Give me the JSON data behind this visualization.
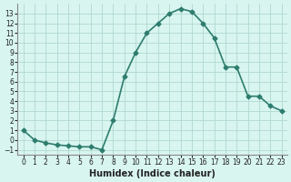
{
  "x": [
    0,
    1,
    2,
    3,
    4,
    5,
    6,
    7,
    8,
    9,
    10,
    11,
    12,
    13,
    14,
    15,
    16,
    17,
    18,
    19,
    20,
    21,
    22,
    23
  ],
  "y": [
    1,
    0,
    -0.3,
    -0.5,
    -0.6,
    -0.7,
    -0.7,
    -1,
    2,
    6.5,
    9,
    11,
    12,
    13,
    13.5,
    13.2,
    12,
    10.5,
    7.5,
    7.5,
    4.5,
    4.5,
    3.5,
    3.0
  ],
  "xlabel": "Humidex (Indice chaleur)",
  "ylim": [
    -1.5,
    14
  ],
  "xlim": [
    -0.5,
    23.5
  ],
  "yticks": [
    -1,
    0,
    1,
    2,
    3,
    4,
    5,
    6,
    7,
    8,
    9,
    10,
    11,
    12,
    13
  ],
  "xticks": [
    0,
    1,
    2,
    3,
    4,
    5,
    6,
    7,
    8,
    9,
    10,
    11,
    12,
    13,
    14,
    15,
    16,
    17,
    18,
    19,
    20,
    21,
    22,
    23
  ],
  "line_color": "#2e7d6e",
  "marker": "D",
  "marker_size": 2.5,
  "bg_color": "#d8f5f0",
  "grid_color": "#b0d9d0",
  "tick_fontsize": 5.5,
  "xlabel_fontsize": 7,
  "linewidth": 1.2
}
